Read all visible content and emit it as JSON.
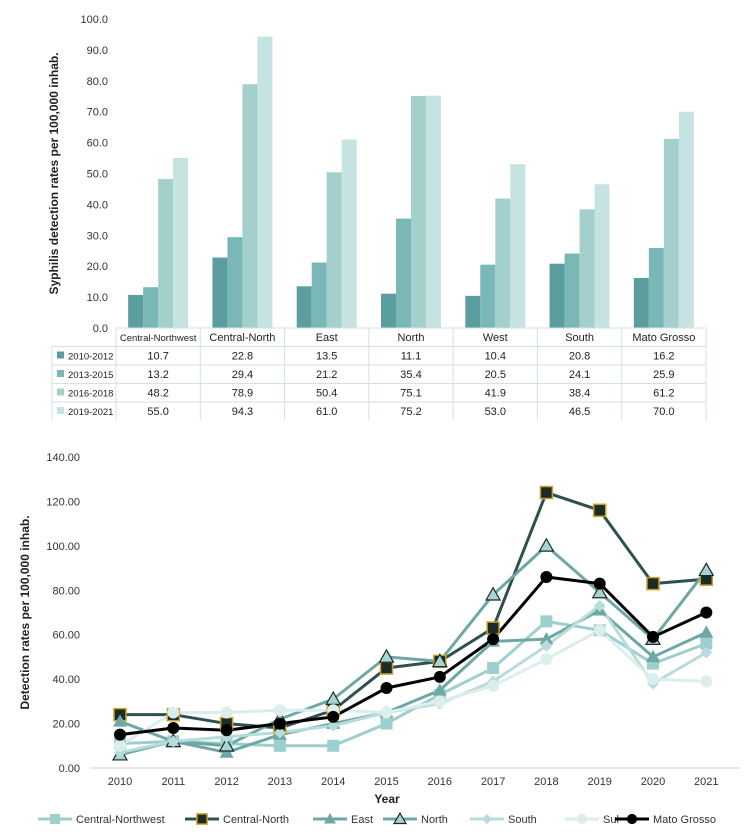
{
  "chart_data": [
    {
      "type": "bar",
      "ylabel": "Syphilis detection rates per 100,000 inhab.",
      "ylim": [
        0,
        100
      ],
      "yticks": [
        "0.0",
        "10.0",
        "20.0",
        "30.0",
        "40.0",
        "50.0",
        "60.0",
        "70.0",
        "80.0",
        "90.0",
        "100.0"
      ],
      "grid": false,
      "categories": [
        "Central-Northwest",
        "Central-North",
        "East",
        "North",
        "West",
        "South",
        "Mato Grosso"
      ],
      "series": [
        {
          "name": "2010-2012",
          "color": "#5a9ea0",
          "values": [
            10.7,
            22.8,
            13.5,
            11.1,
            10.4,
            20.8,
            16.2
          ],
          "labels": [
            "10.7",
            "22.8",
            "13.5",
            "11.1",
            "10.4",
            "20.8",
            "16.2"
          ]
        },
        {
          "name": "2013-2015",
          "color": "#7ab8b8",
          "values": [
            13.2,
            29.4,
            21.2,
            35.4,
            20.5,
            24.1,
            25.9
          ],
          "labels": [
            "13.2",
            "29.4",
            "21.2",
            "35.4",
            "20.5",
            "24.1",
            "25.9"
          ]
        },
        {
          "name": "2016-2018",
          "color": "#a3cfcd",
          "values": [
            48.2,
            78.9,
            50.4,
            75.1,
            41.9,
            38.4,
            61.2
          ],
          "labels": [
            "48.2",
            "78.9",
            "50.4",
            "75.1",
            "41.9",
            "38.4",
            "61.2"
          ]
        },
        {
          "name": "2019-2021",
          "color": "#c5e3e0",
          "values": [
            55.0,
            94.3,
            61.0,
            75.2,
            53.0,
            46.5,
            70.0
          ],
          "labels": [
            "55.0",
            "94.3",
            "61.0",
            "75.2",
            "53.0",
            "46.5",
            "70.0"
          ]
        }
      ],
      "legend": "data-table-below"
    },
    {
      "type": "line",
      "xlabel": "Year",
      "ylabel": "Detection rates per 100,000 inhab.",
      "ylim": [
        0,
        140
      ],
      "yticks": [
        "0.00",
        "20.00",
        "40.00",
        "60.00",
        "80.00",
        "100.00",
        "120.00",
        "140.00"
      ],
      "grid": false,
      "x": [
        "2010",
        "2011",
        "2012",
        "2013",
        "2014",
        "2015",
        "2016",
        "2017",
        "2018",
        "2019",
        "2020",
        "2021"
      ],
      "legend": "bottom",
      "series": [
        {
          "name": "Central-Northwest",
          "color": "#9dcfce",
          "marker": "square",
          "values": [
            11,
            12,
            11,
            10,
            10,
            20,
            33,
            45,
            66,
            62,
            47,
            56
          ]
        },
        {
          "name": "Central-North",
          "color": "#2f5050",
          "marker": "square-gold",
          "values": [
            24,
            24,
            20,
            18,
            26,
            45,
            48,
            63,
            124,
            116,
            83,
            85
          ]
        },
        {
          "name": "East",
          "color": "#6ea8a6",
          "marker": "triangle",
          "values": [
            21,
            12,
            7,
            15,
            20,
            25,
            35,
            57,
            58,
            71,
            50,
            61
          ]
        },
        {
          "name": "North",
          "color": "#6ea8a6",
          "marker": "triangle-outline",
          "values": [
            6,
            12,
            10,
            22,
            31,
            50,
            48,
            78,
            100,
            79,
            58,
            89
          ]
        },
        {
          "name": "South",
          "color": "#b7dcdb",
          "marker": "diamond",
          "values": [
            7,
            12,
            14,
            16,
            19,
            25,
            29,
            39,
            55,
            73,
            38,
            52
          ]
        },
        {
          "name": "Sul",
          "color": "#dbeeed",
          "marker": "circle",
          "values": [
            10,
            25,
            25,
            26,
            26,
            25,
            30,
            37,
            49,
            62,
            40,
            39
          ]
        },
        {
          "name": "Mato Grosso",
          "color": "#000000",
          "marker": "circle-black",
          "values": [
            15,
            18,
            17,
            20,
            23,
            36,
            41,
            58,
            86,
            83,
            59,
            70
          ]
        }
      ]
    }
  ]
}
